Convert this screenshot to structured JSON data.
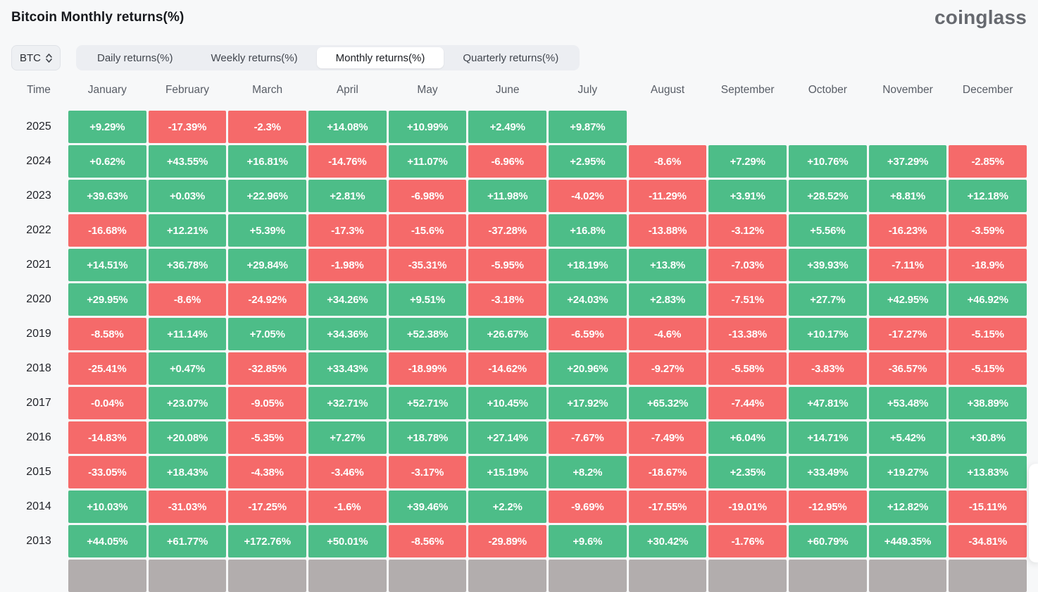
{
  "header": {
    "title": "Bitcoin Monthly returns(%)",
    "logo": "coinglass"
  },
  "controls": {
    "symbol_select": {
      "value": "BTC",
      "icon": "chevron-up-down-icon"
    },
    "tabs": [
      {
        "label": "Daily returns(%)",
        "active": false
      },
      {
        "label": "Weekly returns(%)",
        "active": false
      },
      {
        "label": "Monthly returns(%)",
        "active": true
      },
      {
        "label": "Quarterly returns(%)",
        "active": false
      }
    ]
  },
  "colors": {
    "positive": "#4dbd88",
    "negative": "#f56a6a",
    "partial_row": "#b2adad",
    "cell_text": "#ffffff"
  },
  "table": {
    "time_header": "Time",
    "months": [
      "January",
      "February",
      "March",
      "April",
      "May",
      "June",
      "July",
      "August",
      "September",
      "October",
      "November",
      "December"
    ],
    "rows": [
      {
        "year": "2025",
        "values": [
          "+9.29%",
          "-17.39%",
          "-2.3%",
          "+14.08%",
          "+10.99%",
          "+2.49%",
          "+9.87%",
          "",
          "",
          "",
          "",
          ""
        ]
      },
      {
        "year": "2024",
        "values": [
          "+0.62%",
          "+43.55%",
          "+16.81%",
          "-14.76%",
          "+11.07%",
          "-6.96%",
          "+2.95%",
          "-8.6%",
          "+7.29%",
          "+10.76%",
          "+37.29%",
          "-2.85%"
        ]
      },
      {
        "year": "2023",
        "values": [
          "+39.63%",
          "+0.03%",
          "+22.96%",
          "+2.81%",
          "-6.98%",
          "+11.98%",
          "-4.02%",
          "-11.29%",
          "+3.91%",
          "+28.52%",
          "+8.81%",
          "+12.18%"
        ]
      },
      {
        "year": "2022",
        "values": [
          "-16.68%",
          "+12.21%",
          "+5.39%",
          "-17.3%",
          "-15.6%",
          "-37.28%",
          "+16.8%",
          "-13.88%",
          "-3.12%",
          "+5.56%",
          "-16.23%",
          "-3.59%"
        ]
      },
      {
        "year": "2021",
        "values": [
          "+14.51%",
          "+36.78%",
          "+29.84%",
          "-1.98%",
          "-35.31%",
          "-5.95%",
          "+18.19%",
          "+13.8%",
          "-7.03%",
          "+39.93%",
          "-7.11%",
          "-18.9%"
        ]
      },
      {
        "year": "2020",
        "values": [
          "+29.95%",
          "-8.6%",
          "-24.92%",
          "+34.26%",
          "+9.51%",
          "-3.18%",
          "+24.03%",
          "+2.83%",
          "-7.51%",
          "+27.7%",
          "+42.95%",
          "+46.92%"
        ]
      },
      {
        "year": "2019",
        "values": [
          "-8.58%",
          "+11.14%",
          "+7.05%",
          "+34.36%",
          "+52.38%",
          "+26.67%",
          "-6.59%",
          "-4.6%",
          "-13.38%",
          "+10.17%",
          "-17.27%",
          "-5.15%"
        ]
      },
      {
        "year": "2018",
        "values": [
          "-25.41%",
          "+0.47%",
          "-32.85%",
          "+33.43%",
          "-18.99%",
          "-14.62%",
          "+20.96%",
          "-9.27%",
          "-5.58%",
          "-3.83%",
          "-36.57%",
          "-5.15%"
        ]
      },
      {
        "year": "2017",
        "values": [
          "-0.04%",
          "+23.07%",
          "-9.05%",
          "+32.71%",
          "+52.71%",
          "+10.45%",
          "+17.92%",
          "+65.32%",
          "-7.44%",
          "+47.81%",
          "+53.48%",
          "+38.89%"
        ]
      },
      {
        "year": "2016",
        "values": [
          "-14.83%",
          "+20.08%",
          "-5.35%",
          "+7.27%",
          "+18.78%",
          "+27.14%",
          "-7.67%",
          "-7.49%",
          "+6.04%",
          "+14.71%",
          "+5.42%",
          "+30.8%"
        ]
      },
      {
        "year": "2015",
        "values": [
          "-33.05%",
          "+18.43%",
          "-4.38%",
          "-3.46%",
          "-3.17%",
          "+15.19%",
          "+8.2%",
          "-18.67%",
          "+2.35%",
          "+33.49%",
          "+19.27%",
          "+13.83%"
        ]
      },
      {
        "year": "2014",
        "values": [
          "+10.03%",
          "-31.03%",
          "-17.25%",
          "-1.6%",
          "+39.46%",
          "+2.2%",
          "-9.69%",
          "-17.55%",
          "-19.01%",
          "-12.95%",
          "+12.82%",
          "-15.11%"
        ]
      },
      {
        "year": "2013",
        "values": [
          "+44.05%",
          "+61.77%",
          "+172.76%",
          "+50.01%",
          "-8.56%",
          "-29.89%",
          "+9.6%",
          "+30.42%",
          "-1.76%",
          "+60.79%",
          "+449.35%",
          "-34.81%"
        ]
      }
    ]
  },
  "chart_data": {
    "type": "heatmap",
    "title": "Bitcoin Monthly returns(%)",
    "x_categories": [
      "January",
      "February",
      "March",
      "April",
      "May",
      "June",
      "July",
      "August",
      "September",
      "October",
      "November",
      "December"
    ],
    "y_categories": [
      "2025",
      "2024",
      "2023",
      "2022",
      "2021",
      "2020",
      "2019",
      "2018",
      "2017",
      "2016",
      "2015",
      "2014",
      "2013"
    ],
    "values": [
      [
        9.29,
        -17.39,
        -2.3,
        14.08,
        10.99,
        2.49,
        9.87,
        null,
        null,
        null,
        null,
        null
      ],
      [
        0.62,
        43.55,
        16.81,
        -14.76,
        11.07,
        -6.96,
        2.95,
        -8.6,
        7.29,
        10.76,
        37.29,
        -2.85
      ],
      [
        39.63,
        0.03,
        22.96,
        2.81,
        -6.98,
        11.98,
        -4.02,
        -11.29,
        3.91,
        28.52,
        8.81,
        12.18
      ],
      [
        -16.68,
        12.21,
        5.39,
        -17.3,
        -15.6,
        -37.28,
        16.8,
        -13.88,
        -3.12,
        5.56,
        -16.23,
        -3.59
      ],
      [
        14.51,
        36.78,
        29.84,
        -1.98,
        -35.31,
        -5.95,
        18.19,
        13.8,
        -7.03,
        39.93,
        -7.11,
        -18.9
      ],
      [
        29.95,
        -8.6,
        -24.92,
        34.26,
        9.51,
        -3.18,
        24.03,
        2.83,
        -7.51,
        27.7,
        42.95,
        46.92
      ],
      [
        -8.58,
        11.14,
        7.05,
        34.36,
        52.38,
        26.67,
        -6.59,
        -4.6,
        -13.38,
        10.17,
        -17.27,
        -5.15
      ],
      [
        -25.41,
        0.47,
        -32.85,
        33.43,
        -18.99,
        -14.62,
        20.96,
        -9.27,
        -5.58,
        -3.83,
        -36.57,
        -5.15
      ],
      [
        -0.04,
        23.07,
        -9.05,
        32.71,
        52.71,
        10.45,
        17.92,
        65.32,
        -7.44,
        47.81,
        53.48,
        38.89
      ],
      [
        -14.83,
        20.08,
        -5.35,
        7.27,
        18.78,
        27.14,
        -7.67,
        -7.49,
        6.04,
        14.71,
        5.42,
        30.8
      ],
      [
        -33.05,
        18.43,
        -4.38,
        -3.46,
        -3.17,
        15.19,
        8.2,
        -18.67,
        2.35,
        33.49,
        19.27,
        13.83
      ],
      [
        10.03,
        -31.03,
        -17.25,
        -1.6,
        39.46,
        2.2,
        -9.69,
        -17.55,
        -19.01,
        -12.95,
        12.82,
        -15.11
      ],
      [
        44.05,
        61.77,
        172.76,
        50.01,
        -8.56,
        -29.89,
        9.6,
        30.42,
        -1.76,
        60.79,
        449.35,
        -34.81
      ]
    ],
    "legend": "green = positive return, red = negative return",
    "unit": "%"
  }
}
